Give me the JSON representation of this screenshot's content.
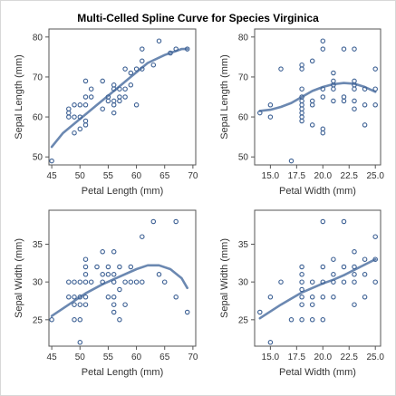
{
  "title": "Multi-Celled Spline Curve for Species Virginica",
  "colors": {
    "marker": "#3b5f93",
    "curve": "#5b7ba8",
    "axis": "#555555",
    "border": "#d8d8d8"
  },
  "chart_data": [
    {
      "type": "scatter",
      "name": "panel-sepal-length-vs-petal-length",
      "xlabel": "Petal Length (mm)",
      "ylabel": "Sepal Length (mm)",
      "xlim": [
        44.5,
        70.5
      ],
      "ylim": [
        48,
        82
      ],
      "xticks": [
        45,
        50,
        55,
        60,
        65,
        70
      ],
      "yticks": [
        50,
        60,
        70,
        80
      ],
      "points": [
        [
          45,
          49
        ],
        [
          48,
          60
        ],
        [
          48,
          61
        ],
        [
          48,
          62
        ],
        [
          49,
          56
        ],
        [
          49,
          60
        ],
        [
          49,
          63
        ],
        [
          50,
          57
        ],
        [
          50,
          60
        ],
        [
          50,
          63
        ],
        [
          51,
          58
        ],
        [
          51,
          59
        ],
        [
          51,
          63
        ],
        [
          51,
          65
        ],
        [
          51,
          69
        ],
        [
          52,
          65
        ],
        [
          52,
          67
        ],
        [
          54,
          62
        ],
        [
          54,
          69
        ],
        [
          55,
          64
        ],
        [
          55,
          65
        ],
        [
          56,
          61
        ],
        [
          56,
          63
        ],
        [
          56,
          64
        ],
        [
          56,
          67
        ],
        [
          56,
          68
        ],
        [
          57,
          64
        ],
        [
          57,
          65
        ],
        [
          57,
          67
        ],
        [
          58,
          65
        ],
        [
          58,
          67
        ],
        [
          58,
          72
        ],
        [
          59,
          68
        ],
        [
          59,
          71
        ],
        [
          60,
          63
        ],
        [
          60,
          72
        ],
        [
          61,
          72
        ],
        [
          61,
          74
        ],
        [
          61,
          77
        ],
        [
          63,
          73
        ],
        [
          64,
          79
        ],
        [
          66,
          76
        ],
        [
          67,
          77
        ],
        [
          69,
          77
        ]
      ],
      "curve": [
        [
          45,
          52.5
        ],
        [
          47,
          56
        ],
        [
          50,
          59.5
        ],
        [
          53,
          63
        ],
        [
          56,
          66.5
        ],
        [
          59,
          70
        ],
        [
          62,
          73.5
        ],
        [
          65,
          75.5
        ],
        [
          68,
          77
        ],
        [
          69,
          77
        ]
      ]
    },
    {
      "type": "scatter",
      "name": "panel-sepal-length-vs-petal-width",
      "xlabel": "Petal Width (mm)",
      "ylabel": "Sepal Length (mm)",
      "xlim": [
        13.5,
        25.5
      ],
      "ylim": [
        48,
        82
      ],
      "xticks": [
        15.0,
        17.5,
        20.0,
        22.5,
        25.0
      ],
      "yticks": [
        50,
        60,
        70,
        80
      ],
      "points": [
        [
          14,
          61
        ],
        [
          15,
          60
        ],
        [
          15,
          63
        ],
        [
          16,
          72
        ],
        [
          17,
          49
        ],
        [
          18,
          59
        ],
        [
          18,
          60
        ],
        [
          18,
          61
        ],
        [
          18,
          62
        ],
        [
          18,
          63
        ],
        [
          18,
          64
        ],
        [
          18,
          65
        ],
        [
          18,
          67
        ],
        [
          18,
          72
        ],
        [
          18,
          73
        ],
        [
          19,
          58
        ],
        [
          19,
          63
        ],
        [
          19,
          64
        ],
        [
          19,
          74
        ],
        [
          20,
          56
        ],
        [
          20,
          57
        ],
        [
          20,
          65
        ],
        [
          20,
          67
        ],
        [
          20,
          77
        ],
        [
          20,
          79
        ],
        [
          21,
          64
        ],
        [
          21,
          67
        ],
        [
          21,
          68
        ],
        [
          21,
          69
        ],
        [
          21,
          71
        ],
        [
          22,
          64
        ],
        [
          22,
          65
        ],
        [
          22,
          77
        ],
        [
          23,
          62
        ],
        [
          23,
          64
        ],
        [
          23,
          67
        ],
        [
          23,
          68
        ],
        [
          23,
          69
        ],
        [
          23,
          77
        ],
        [
          24,
          58
        ],
        [
          24,
          63
        ],
        [
          24,
          67
        ],
        [
          25,
          63
        ],
        [
          25,
          67
        ],
        [
          25,
          72
        ]
      ],
      "curve": [
        [
          14,
          61.5
        ],
        [
          15,
          61.8
        ],
        [
          16,
          62.5
        ],
        [
          17,
          63.5
        ],
        [
          18,
          65
        ],
        [
          19,
          66.5
        ],
        [
          20,
          67.5
        ],
        [
          21,
          68.2
        ],
        [
          22,
          68.5
        ],
        [
          23,
          68.3
        ],
        [
          24,
          67.5
        ],
        [
          25,
          66.3
        ]
      ]
    },
    {
      "type": "scatter",
      "name": "panel-sepal-width-vs-petal-length",
      "xlabel": "Petal Length (mm)",
      "ylabel": "Sepal Width (mm)",
      "xlim": [
        44.5,
        70.5
      ],
      "ylim": [
        21.5,
        39.5
      ],
      "xticks": [
        45,
        50,
        55,
        60,
        65,
        70
      ],
      "yticks": [
        25,
        30,
        35
      ],
      "points": [
        [
          45,
          25
        ],
        [
          48,
          28
        ],
        [
          48,
          30
        ],
        [
          49,
          25
        ],
        [
          49,
          27
        ],
        [
          49,
          28
        ],
        [
          49,
          30
        ],
        [
          50,
          22
        ],
        [
          50,
          25
        ],
        [
          50,
          27
        ],
        [
          50,
          28
        ],
        [
          50,
          30
        ],
        [
          51,
          27
        ],
        [
          51,
          28
        ],
        [
          51,
          30
        ],
        [
          51,
          31
        ],
        [
          51,
          32
        ],
        [
          51,
          33
        ],
        [
          52,
          30
        ],
        [
          53,
          32
        ],
        [
          54,
          30
        ],
        [
          54,
          31
        ],
        [
          54,
          34
        ],
        [
          55,
          28
        ],
        [
          55,
          31
        ],
        [
          55,
          32
        ],
        [
          56,
          26
        ],
        [
          56,
          27
        ],
        [
          56,
          28
        ],
        [
          56,
          30
        ],
        [
          56,
          31
        ],
        [
          56,
          34
        ],
        [
          57,
          25
        ],
        [
          57,
          29
        ],
        [
          57,
          32
        ],
        [
          58,
          27
        ],
        [
          58,
          30
        ],
        [
          59,
          30
        ],
        [
          59,
          32
        ],
        [
          60,
          30
        ],
        [
          61,
          30
        ],
        [
          61,
          36
        ],
        [
          63,
          38
        ],
        [
          64,
          31
        ],
        [
          65,
          30
        ],
        [
          67,
          38
        ],
        [
          67,
          28
        ],
        [
          69,
          26
        ]
      ],
      "curve": [
        [
          45,
          25.5
        ],
        [
          48,
          27
        ],
        [
          51,
          28.5
        ],
        [
          54,
          29.7
        ],
        [
          57,
          30.7
        ],
        [
          60,
          31.7
        ],
        [
          62,
          32.2
        ],
        [
          64,
          32.2
        ],
        [
          66,
          31.7
        ],
        [
          68,
          30.5
        ],
        [
          69,
          29.2
        ]
      ]
    },
    {
      "type": "scatter",
      "name": "panel-sepal-width-vs-petal-width",
      "xlabel": "Petal Width (mm)",
      "ylabel": "Sepal Width (mm)",
      "xlim": [
        13.5,
        25.5
      ],
      "ylim": [
        21.5,
        39.5
      ],
      "xticks": [
        15.0,
        17.5,
        20.0,
        22.5,
        25.0
      ],
      "yticks": [
        25,
        30,
        35
      ],
      "points": [
        [
          14,
          26
        ],
        [
          15,
          22
        ],
        [
          15,
          28
        ],
        [
          16,
          30
        ],
        [
          17,
          25
        ],
        [
          18,
          25
        ],
        [
          18,
          27
        ],
        [
          18,
          28
        ],
        [
          18,
          29
        ],
        [
          18,
          30
        ],
        [
          18,
          31
        ],
        [
          18,
          32
        ],
        [
          19,
          25
        ],
        [
          19,
          27
        ],
        [
          19,
          28
        ],
        [
          19,
          30
        ],
        [
          20,
          25
        ],
        [
          20,
          28
        ],
        [
          20,
          30
        ],
        [
          20,
          32
        ],
        [
          20,
          38
        ],
        [
          21,
          28
        ],
        [
          21,
          30
        ],
        [
          21,
          31
        ],
        [
          21,
          33
        ],
        [
          22,
          30
        ],
        [
          22,
          32
        ],
        [
          22,
          38
        ],
        [
          23,
          27
        ],
        [
          23,
          30
        ],
        [
          23,
          31
        ],
        [
          23,
          32
        ],
        [
          23,
          34
        ],
        [
          24,
          28
        ],
        [
          24,
          31
        ],
        [
          24,
          33
        ],
        [
          25,
          30
        ],
        [
          25,
          33
        ],
        [
          25,
          36
        ]
      ],
      "curve": [
        [
          14,
          25.2
        ],
        [
          15,
          26.1
        ],
        [
          16,
          27
        ],
        [
          17,
          27.8
        ],
        [
          18,
          28.6
        ],
        [
          19,
          29.2
        ],
        [
          20,
          29.8
        ],
        [
          21,
          30.3
        ],
        [
          22,
          30.9
        ],
        [
          23,
          31.6
        ],
        [
          24,
          32.3
        ],
        [
          25,
          33
        ]
      ]
    }
  ]
}
